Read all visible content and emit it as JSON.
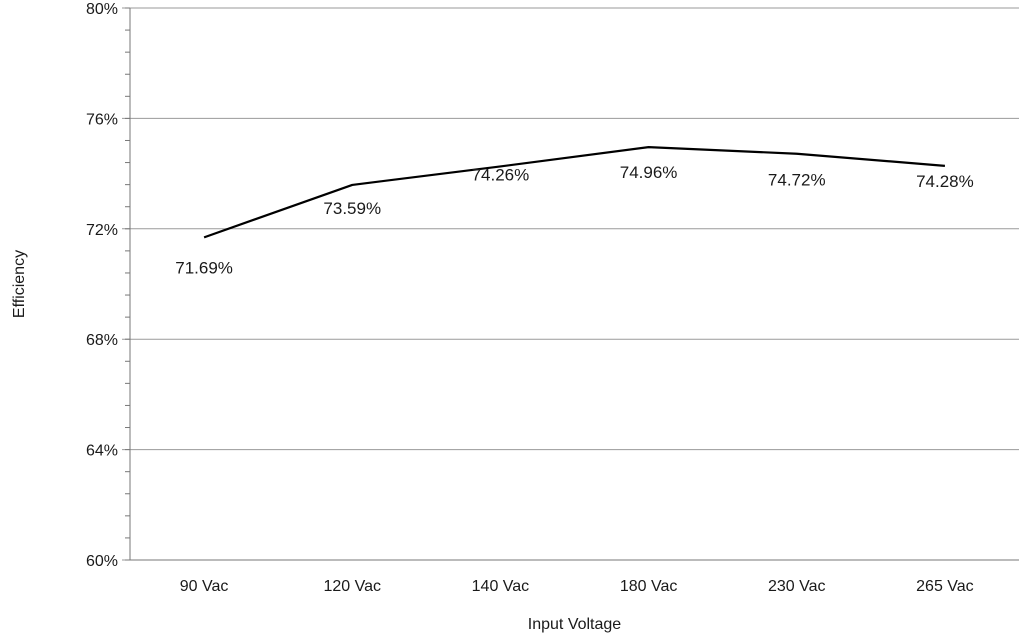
{
  "chart_data": {
    "type": "line",
    "title": "",
    "xlabel": "Input Voltage",
    "ylabel": "Efficiency",
    "categories": [
      "90 Vac",
      "120 Vac",
      "140 Vac",
      "180 Vac",
      "230 Vac",
      "265 Vac"
    ],
    "series": [
      {
        "values": [
          71.69,
          73.59,
          74.26,
          74.96,
          74.72,
          74.28
        ],
        "labels": [
          "71.69%",
          "73.59%",
          "74.26%",
          "74.96%",
          "74.72%",
          "74.28%"
        ],
        "color": "#000000"
      }
    ],
    "ylim": [
      60,
      80
    ],
    "yticks": [
      60,
      64,
      68,
      72,
      76,
      80
    ],
    "ytick_labels": [
      "60%",
      "64%",
      "68%",
      "72%",
      "76%",
      "80%"
    ],
    "grid": true,
    "legend": "none"
  }
}
